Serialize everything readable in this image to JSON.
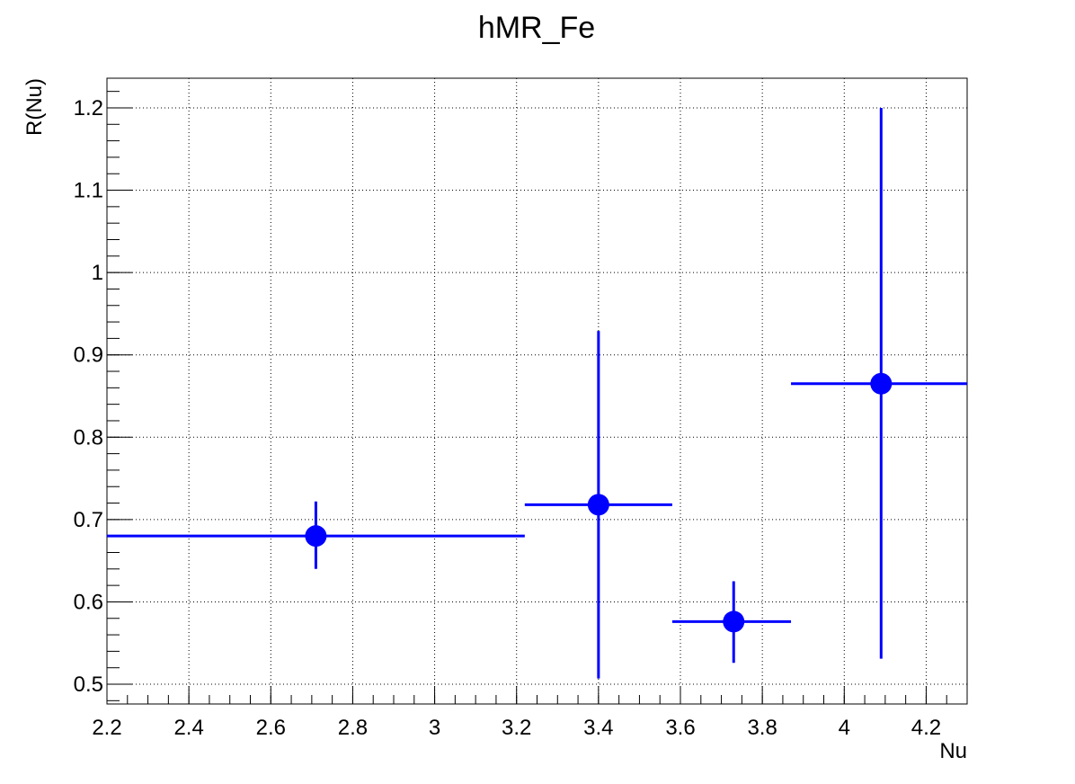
{
  "chart_data": {
    "type": "scatter",
    "title": "hMR_Fe",
    "xlabel": "Nu",
    "ylabel": "R(Nu)",
    "xlim": [
      2.2,
      4.3
    ],
    "ylim": [
      0.476,
      1.236
    ],
    "grid": true,
    "xticks": [
      2.2,
      2.4,
      2.6,
      2.8,
      3,
      3.2,
      3.4,
      3.6,
      3.8,
      4,
      4.2
    ],
    "xtick_labels": [
      "2.2",
      "2.4",
      "2.6",
      "2.8",
      "3",
      "3.2",
      "3.4",
      "3.6",
      "3.8",
      "4",
      "4.2"
    ],
    "yticks": [
      0.5,
      0.6,
      0.7,
      0.8,
      0.9,
      1,
      1.1,
      1.2
    ],
    "ytick_labels": [
      "0.5",
      "0.6",
      "0.7",
      "0.8",
      "0.9",
      "1",
      "1.1",
      "1.2"
    ],
    "series": [
      {
        "color": "#0000ff",
        "points": [
          {
            "x": 2.71,
            "y": 0.68,
            "xerr_low": 2.2,
            "xerr_high": 3.22,
            "yerr_low": 0.64,
            "yerr_high": 0.722
          },
          {
            "x": 3.4,
            "y": 0.718,
            "xerr_low": 3.22,
            "xerr_high": 3.58,
            "yerr_low": 0.507,
            "yerr_high": 0.929
          },
          {
            "x": 3.73,
            "y": 0.576,
            "xerr_low": 3.58,
            "xerr_high": 3.87,
            "yerr_low": 0.526,
            "yerr_high": 0.625
          },
          {
            "x": 4.09,
            "y": 0.865,
            "xerr_low": 3.87,
            "xerr_high": 4.3,
            "yerr_low": 0.531,
            "yerr_high": 1.2
          }
        ]
      }
    ]
  }
}
